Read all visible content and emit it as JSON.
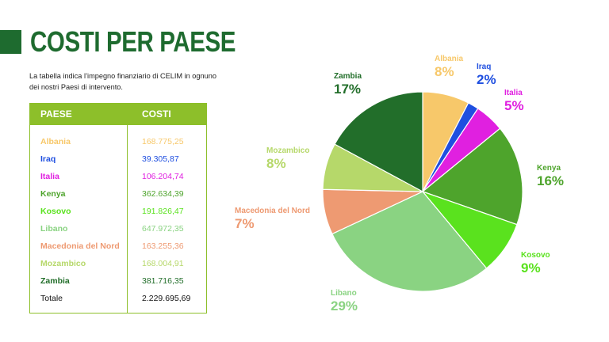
{
  "page": {
    "title": "COSTI PER PAESE",
    "title_color": "#1e6b2f",
    "accent_color": "#8dbf2a"
  },
  "intro": "La tabella indica l’impegno finanziario di CELIM in ognuno dei nostri Paesi di intervento.",
  "table": {
    "headers": [
      "PAESE",
      "COSTI"
    ],
    "rows": [
      {
        "country": "Albania",
        "cost": "168.775,25",
        "color": "#f7c86a"
      },
      {
        "country": "Iraq",
        "cost": "39.305,87",
        "color": "#1f4fe0"
      },
      {
        "country": "Italia",
        "cost": "106.204,74",
        "color": "#e020e0"
      },
      {
        "country": "Kenya",
        "cost": "362.634,39",
        "color": "#4ea42c"
      },
      {
        "country": "Kosovo",
        "cost": "191.826,47",
        "color": "#5ae21e"
      },
      {
        "country": "Libano",
        "cost": "647.972,35",
        "color": "#8ad382"
      },
      {
        "country": "Macedonia del Nord",
        "cost": "163.255,36",
        "color": "#ee9a72"
      },
      {
        "country": "Mozambico",
        "cost": "168.004,91",
        "color": "#b6d86a"
      },
      {
        "country": "Zambia",
        "cost": "381.716,35",
        "color": "#226e2a"
      }
    ],
    "total": {
      "label": "Totale",
      "cost": "2.229.695,69"
    }
  },
  "chart_data": {
    "type": "pie",
    "start_angle_deg": 0,
    "direction": "clockwise",
    "slices": [
      {
        "label": "Albania",
        "value": 168775.25,
        "percent_label": "8%",
        "color": "#f7c86a"
      },
      {
        "label": "Iraq",
        "value": 39305.87,
        "percent_label": "2%",
        "color": "#1f4fe0"
      },
      {
        "label": "Italia",
        "value": 106204.74,
        "percent_label": "5%",
        "color": "#e020e0"
      },
      {
        "label": "Kenya",
        "value": 362634.39,
        "percent_label": "16%",
        "color": "#4ea42c"
      },
      {
        "label": "Kosovo",
        "value": 191826.47,
        "percent_label": "9%",
        "color": "#5ae21e"
      },
      {
        "label": "Libano",
        "value": 647972.35,
        "percent_label": "29%",
        "color": "#8ad382"
      },
      {
        "label": "Macedonia del Nord",
        "value": 163255.36,
        "percent_label": "7%",
        "color": "#ee9a72"
      },
      {
        "label": "Mozambico",
        "value": 168004.91,
        "percent_label": "8%",
        "color": "#b6d86a"
      },
      {
        "label": "Zambia",
        "value": 381716.35,
        "percent_label": "17%",
        "color": "#226e2a"
      }
    ]
  }
}
